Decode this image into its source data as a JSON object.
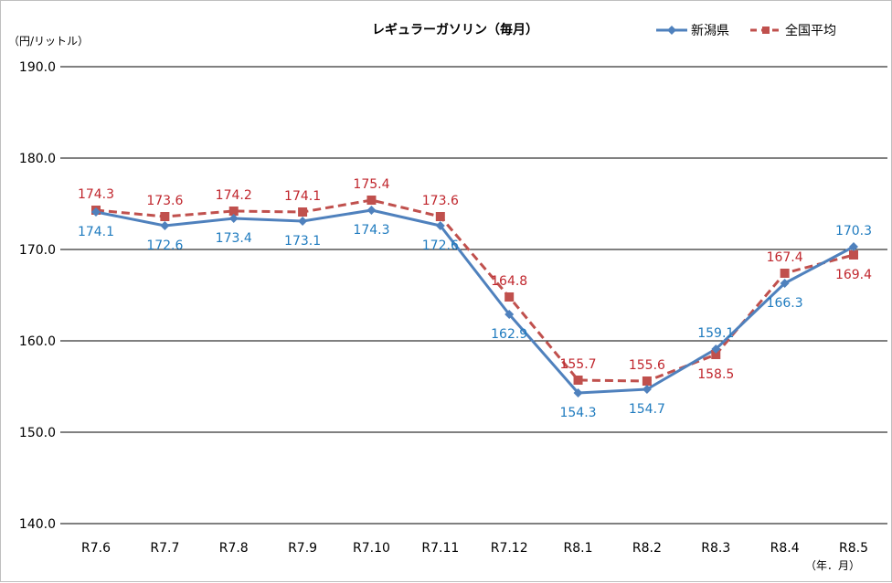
{
  "chart_data": {
    "type": "line",
    "title": "レギュラーガソリン（毎月）",
    "ylabel": "（円/リットル）",
    "xlabel": "（年．月）",
    "ylim": [
      140,
      190
    ],
    "yticks": [
      "190.0",
      "180.0",
      "170.0",
      "160.0",
      "150.0",
      "140.0"
    ],
    "grid": true,
    "legend_position": "top-right",
    "categories": [
      "R7.6",
      "R7.7",
      "R7.8",
      "R7.9",
      "R7.10",
      "R7.11",
      "R7.12",
      "R8.1",
      "R8.2",
      "R8.3",
      "R8.4",
      "R8.5"
    ],
    "series": [
      {
        "name": "新潟県",
        "color": "#4f81bd",
        "label_color": "#1f7bbf",
        "marker": "diamond",
        "dash": "solid",
        "values": [
          174.1,
          172.6,
          173.4,
          173.1,
          174.3,
          172.6,
          162.9,
          154.3,
          154.7,
          159.1,
          166.3,
          170.3
        ]
      },
      {
        "name": "全国平均",
        "color": "#c0504d",
        "label_color": "#c0262d",
        "marker": "square",
        "dash": "dashed",
        "values": [
          174.3,
          173.6,
          174.2,
          174.1,
          175.4,
          173.6,
          164.8,
          155.7,
          155.6,
          158.5,
          167.4,
          169.4
        ]
      }
    ]
  }
}
